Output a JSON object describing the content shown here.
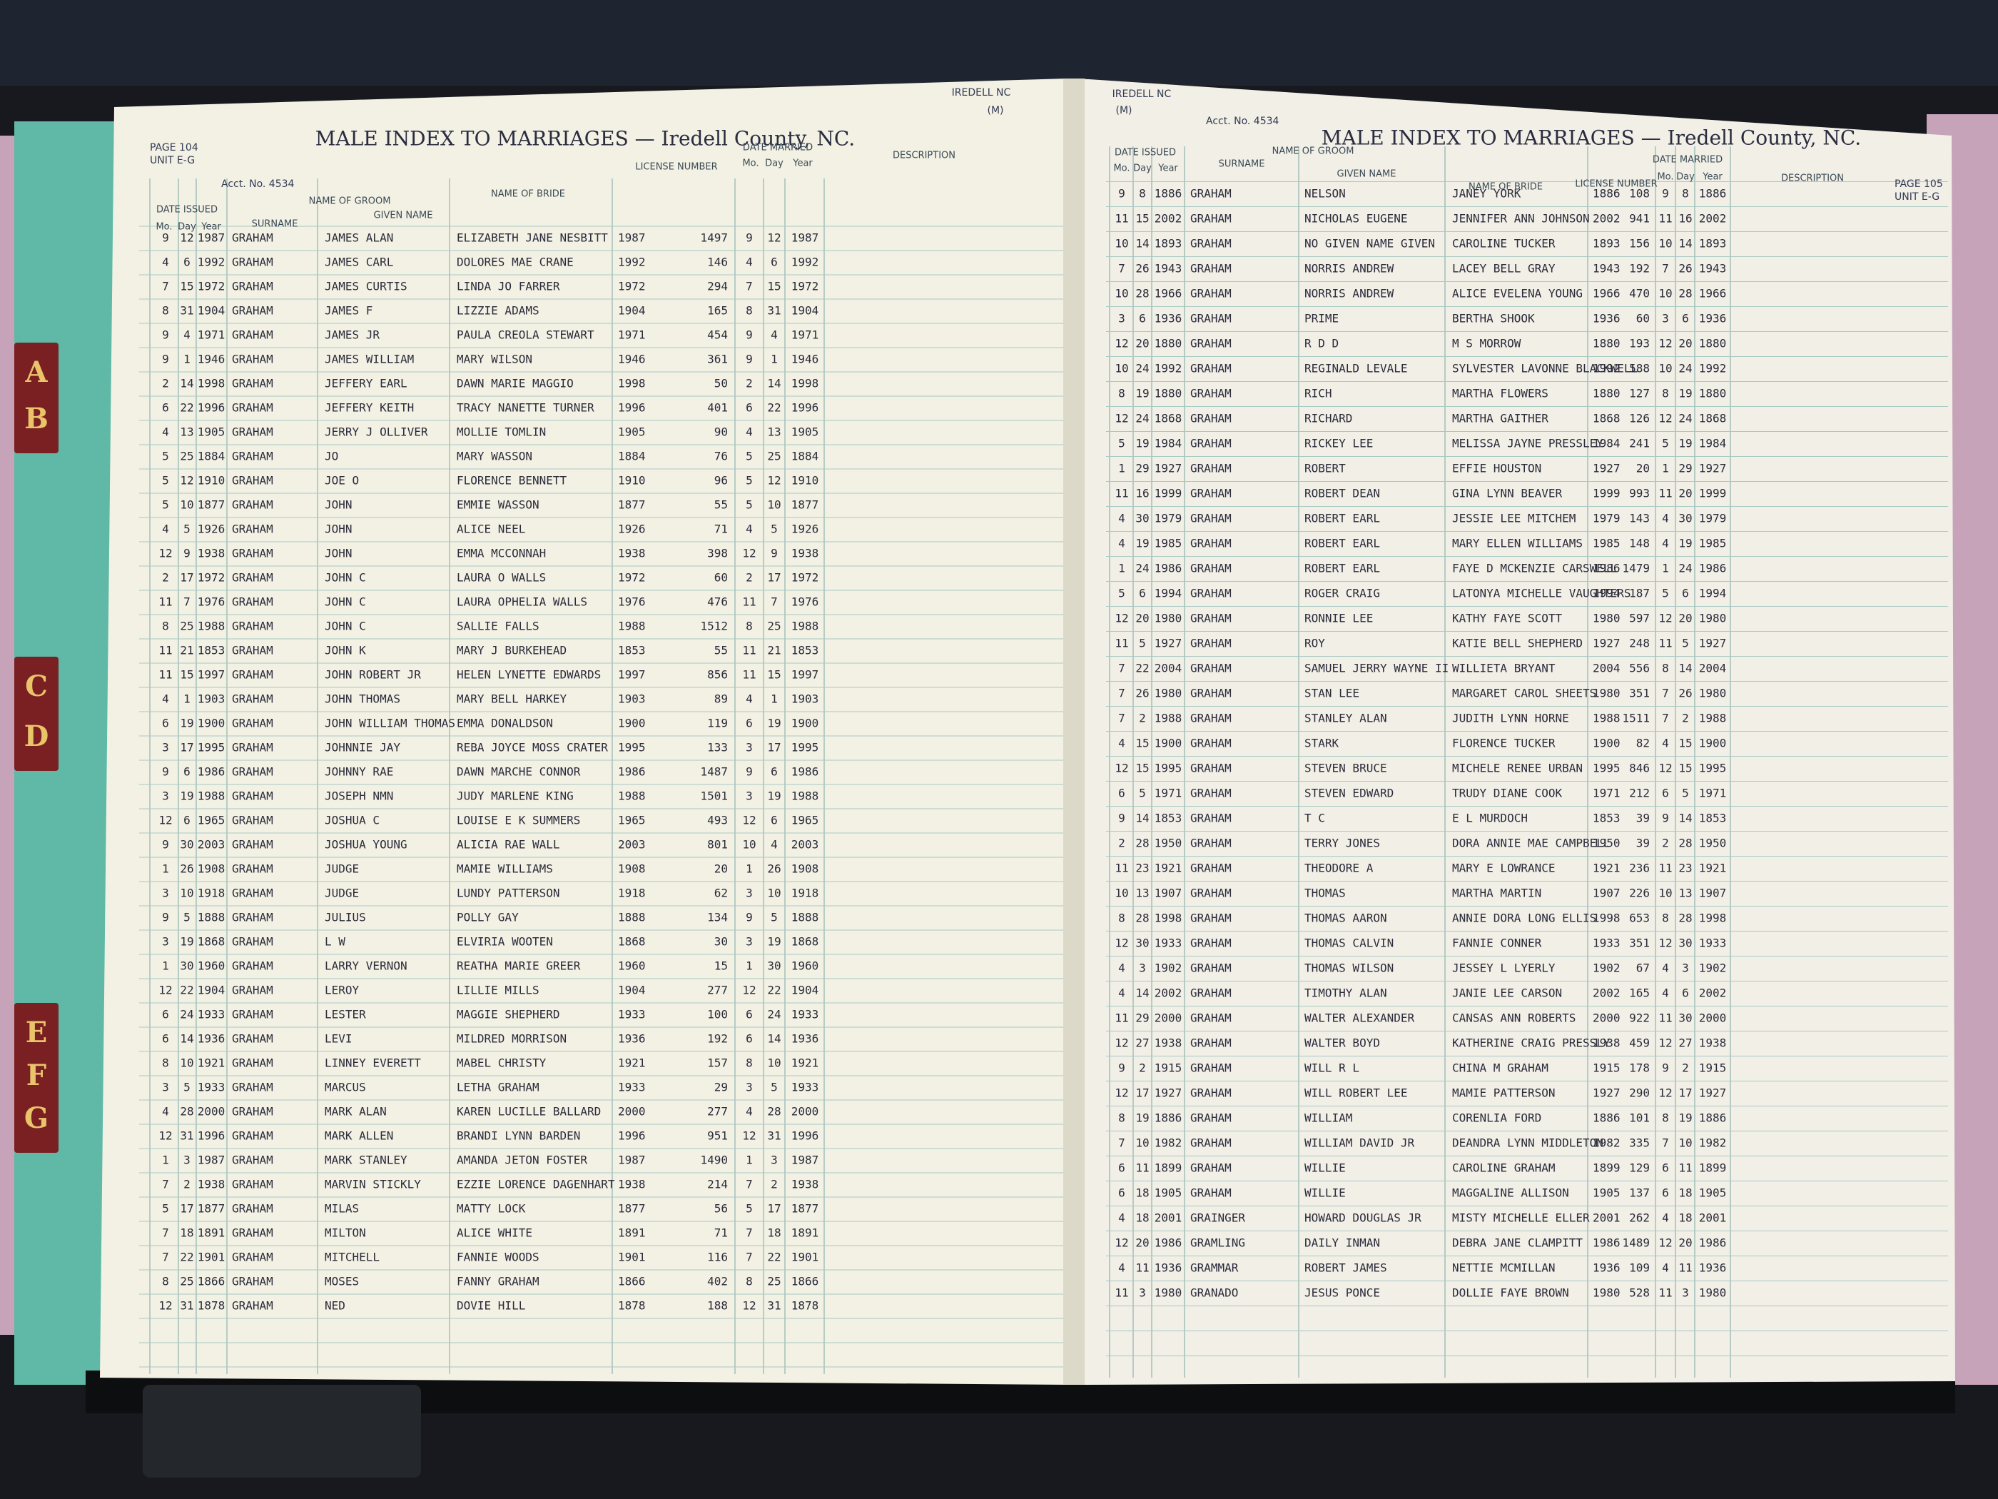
{
  "headers": {
    "date_issued": "DATE ISSUED",
    "mo": "Mo.",
    "day": "Day",
    "year": "Year",
    "groom": "NAME OF GROOM",
    "surname": "SURNAME",
    "given": "GIVEN NAME",
    "bride": "NAME OF BRIDE",
    "license": "LICENSE NUMBER",
    "date_married": "DATE MARRIED",
    "description": "DESCRIPTION"
  },
  "left_page": {
    "page": "PAGE 104",
    "unit": "UNIT E-G",
    "acct": "Acct. No. 4534",
    "title": "MALE INDEX TO MARRIAGES — Iredell County, NC.",
    "county": "IREDELL NC",
    "code": "(M)",
    "rows": [
      [
        9,
        12,
        1987,
        "GRAHAM",
        "JAMES ALAN",
        "ELIZABETH JANE NESBITT",
        1987,
        1497,
        9,
        12,
        1987
      ],
      [
        4,
        6,
        1992,
        "GRAHAM",
        "JAMES CARL",
        "DOLORES MAE CRANE",
        1992,
        146,
        4,
        6,
        1992
      ],
      [
        7,
        15,
        1972,
        "GRAHAM",
        "JAMES CURTIS",
        "LINDA JO FARRER",
        1972,
        294,
        7,
        15,
        1972
      ],
      [
        8,
        31,
        1904,
        "GRAHAM",
        "JAMES F",
        "LIZZIE ADAMS",
        1904,
        165,
        8,
        31,
        1904
      ],
      [
        9,
        4,
        1971,
        "GRAHAM",
        "JAMES JR",
        "PAULA CREOLA STEWART",
        1971,
        454,
        9,
        4,
        1971
      ],
      [
        9,
        1,
        1946,
        "GRAHAM",
        "JAMES WILLIAM",
        "MARY WILSON",
        1946,
        361,
        9,
        1,
        1946
      ],
      [
        2,
        14,
        1998,
        "GRAHAM",
        "JEFFERY EARL",
        "DAWN MARIE MAGGIO",
        1998,
        50,
        2,
        14,
        1998
      ],
      [
        6,
        22,
        1996,
        "GRAHAM",
        "JEFFERY KEITH",
        "TRACY NANETTE TURNER",
        1996,
        401,
        6,
        22,
        1996
      ],
      [
        4,
        13,
        1905,
        "GRAHAM",
        "JERRY J OLLIVER",
        "MOLLIE TOMLIN",
        1905,
        90,
        4,
        13,
        1905
      ],
      [
        5,
        25,
        1884,
        "GRAHAM",
        "JO",
        "MARY WASSON",
        1884,
        76,
        5,
        25,
        1884
      ],
      [
        5,
        12,
        1910,
        "GRAHAM",
        "JOE O",
        "FLORENCE BENNETT",
        1910,
        96,
        5,
        12,
        1910
      ],
      [
        5,
        10,
        1877,
        "GRAHAM",
        "JOHN",
        "EMMIE WASSON",
        1877,
        55,
        5,
        10,
        1877
      ],
      [
        4,
        5,
        1926,
        "GRAHAM",
        "JOHN",
        "ALICE NEEL",
        1926,
        71,
        4,
        5,
        1926
      ],
      [
        12,
        9,
        1938,
        "GRAHAM",
        "JOHN",
        "EMMA MCCONNAH",
        1938,
        398,
        12,
        9,
        1938
      ],
      [
        2,
        17,
        1972,
        "GRAHAM",
        "JOHN C",
        "LAURA O WALLS",
        1972,
        60,
        2,
        17,
        1972
      ],
      [
        11,
        7,
        1976,
        "GRAHAM",
        "JOHN C",
        "LAURA OPHELIA WALLS",
        1976,
        476,
        11,
        7,
        1976
      ],
      [
        8,
        25,
        1988,
        "GRAHAM",
        "JOHN C",
        "SALLIE FALLS",
        1988,
        1512,
        8,
        25,
        1988
      ],
      [
        11,
        21,
        1853,
        "GRAHAM",
        "JOHN K",
        "MARY J BURKEHEAD",
        1853,
        55,
        11,
        21,
        1853
      ],
      [
        11,
        15,
        1997,
        "GRAHAM",
        "JOHN ROBERT JR",
        "HELEN LYNETTE EDWARDS",
        1997,
        856,
        11,
        15,
        1997
      ],
      [
        4,
        1,
        1903,
        "GRAHAM",
        "JOHN THOMAS",
        "MARY BELL HARKEY",
        1903,
        89,
        4,
        1,
        1903
      ],
      [
        6,
        19,
        1900,
        "GRAHAM",
        "JOHN WILLIAM THOMAS",
        "EMMA DONALDSON",
        1900,
        119,
        6,
        19,
        1900
      ],
      [
        3,
        17,
        1995,
        "GRAHAM",
        "JOHNNIE JAY",
        "REBA JOYCE MOSS CRATER",
        1995,
        133,
        3,
        17,
        1995
      ],
      [
        9,
        6,
        1986,
        "GRAHAM",
        "JOHNNY RAE",
        "DAWN MARCHE CONNOR",
        1986,
        1487,
        9,
        6,
        1986
      ],
      [
        3,
        19,
        1988,
        "GRAHAM",
        "JOSEPH NMN",
        "JUDY MARLENE KING",
        1988,
        1501,
        3,
        19,
        1988
      ],
      [
        12,
        6,
        1965,
        "GRAHAM",
        "JOSHUA C",
        "LOUISE E K SUMMERS",
        1965,
        493,
        12,
        6,
        1965
      ],
      [
        9,
        30,
        2003,
        "GRAHAM",
        "JOSHUA YOUNG",
        "ALICIA RAE WALL",
        2003,
        801,
        10,
        4,
        2003
      ],
      [
        1,
        26,
        1908,
        "GRAHAM",
        "JUDGE",
        "MAMIE WILLIAMS",
        1908,
        20,
        1,
        26,
        1908
      ],
      [
        3,
        10,
        1918,
        "GRAHAM",
        "JUDGE",
        "LUNDY PATTERSON",
        1918,
        62,
        3,
        10,
        1918
      ],
      [
        9,
        5,
        1888,
        "GRAHAM",
        "JULIUS",
        "POLLY GAY",
        1888,
        134,
        9,
        5,
        1888
      ],
      [
        3,
        19,
        1868,
        "GRAHAM",
        "L W",
        "ELVIRIA WOOTEN",
        1868,
        30,
        3,
        19,
        1868
      ],
      [
        1,
        30,
        1960,
        "GRAHAM",
        "LARRY VERNON",
        "REATHA MARIE GREER",
        1960,
        15,
        1,
        30,
        1960
      ],
      [
        12,
        22,
        1904,
        "GRAHAM",
        "LEROY",
        "LILLIE MILLS",
        1904,
        277,
        12,
        22,
        1904
      ],
      [
        6,
        24,
        1933,
        "GRAHAM",
        "LESTER",
        "MAGGIE SHEPHERD",
        1933,
        100,
        6,
        24,
        1933
      ],
      [
        6,
        14,
        1936,
        "GRAHAM",
        "LEVI",
        "MILDRED MORRISON",
        1936,
        192,
        6,
        14,
        1936
      ],
      [
        8,
        10,
        1921,
        "GRAHAM",
        "LINNEY EVERETT",
        "MABEL CHRISTY",
        1921,
        157,
        8,
        10,
        1921
      ],
      [
        3,
        5,
        1933,
        "GRAHAM",
        "MARCUS",
        "LETHA GRAHAM",
        1933,
        29,
        3,
        5,
        1933
      ],
      [
        4,
        28,
        2000,
        "GRAHAM",
        "MARK ALAN",
        "KAREN LUCILLE BALLARD",
        2000,
        277,
        4,
        28,
        2000
      ],
      [
        12,
        31,
        1996,
        "GRAHAM",
        "MARK ALLEN",
        "BRANDI LYNN BARDEN",
        1996,
        951,
        12,
        31,
        1996
      ],
      [
        1,
        3,
        1987,
        "GRAHAM",
        "MARK STANLEY",
        "AMANDA JETON FOSTER",
        1987,
        1490,
        1,
        3,
        1987
      ],
      [
        7,
        2,
        1938,
        "GRAHAM",
        "MARVIN STICKLY",
        "EZZIE LORENCE DAGENHART",
        1938,
        214,
        7,
        2,
        1938
      ],
      [
        5,
        17,
        1877,
        "GRAHAM",
        "MILAS",
        "MATTY LOCK",
        1877,
        56,
        5,
        17,
        1877
      ],
      [
        7,
        18,
        1891,
        "GRAHAM",
        "MILTON",
        "ALICE WHITE",
        1891,
        71,
        7,
        18,
        1891
      ],
      [
        7,
        22,
        1901,
        "GRAHAM",
        "MITCHELL",
        "FANNIE WOODS",
        1901,
        116,
        7,
        22,
        1901
      ],
      [
        8,
        25,
        1866,
        "GRAHAM",
        "MOSES",
        "FANNY GRAHAM",
        1866,
        402,
        8,
        25,
        1866
      ],
      [
        12,
        31,
        1878,
        "GRAHAM",
        "NED",
        "DOVIE HILL",
        1878,
        188,
        12,
        31,
        1878
      ]
    ]
  },
  "right_page": {
    "page": "PAGE 105",
    "unit": "UNIT E-G",
    "acct": "Acct. No. 4534",
    "title": "MALE INDEX TO MARRIAGES — Iredell County, NC.",
    "county": "IREDELL NC",
    "code": "(M)",
    "rows": [
      [
        9,
        8,
        1886,
        "GRAHAM",
        "NELSON",
        "JANEY YORK",
        1886,
        108,
        9,
        8,
        1886
      ],
      [
        11,
        15,
        2002,
        "GRAHAM",
        "NICHOLAS EUGENE",
        "JENNIFER ANN JOHNSON",
        2002,
        941,
        11,
        16,
        2002
      ],
      [
        10,
        14,
        1893,
        "GRAHAM",
        "NO GIVEN NAME GIVEN",
        "CAROLINE TUCKER",
        1893,
        156,
        10,
        14,
        1893
      ],
      [
        7,
        26,
        1943,
        "GRAHAM",
        "NORRIS ANDREW",
        "LACEY BELL GRAY",
        1943,
        192,
        7,
        26,
        1943
      ],
      [
        10,
        28,
        1966,
        "GRAHAM",
        "NORRIS ANDREW",
        "ALICE EVELENA YOUNG",
        1966,
        470,
        10,
        28,
        1966
      ],
      [
        3,
        6,
        1936,
        "GRAHAM",
        "PRIME",
        "BERTHA SHOOK",
        1936,
        60,
        3,
        6,
        1936
      ],
      [
        12,
        20,
        1880,
        "GRAHAM",
        "R D D",
        "M S MORROW",
        1880,
        193,
        12,
        20,
        1880
      ],
      [
        10,
        24,
        1992,
        "GRAHAM",
        "REGINALD LEVALE",
        "SYLVESTER LAVONNE BLACKWELL",
        1992,
        588,
        10,
        24,
        1992
      ],
      [
        8,
        19,
        1880,
        "GRAHAM",
        "RICH",
        "MARTHA FLOWERS",
        1880,
        127,
        8,
        19,
        1880
      ],
      [
        12,
        24,
        1868,
        "GRAHAM",
        "RICHARD",
        "MARTHA GAITHER",
        1868,
        126,
        12,
        24,
        1868
      ],
      [
        5,
        19,
        1984,
        "GRAHAM",
        "RICKEY LEE",
        "MELISSA JAYNE PRESSLEY",
        1984,
        241,
        5,
        19,
        1984
      ],
      [
        1,
        29,
        1927,
        "GRAHAM",
        "ROBERT",
        "EFFIE HOUSTON",
        1927,
        20,
        1,
        29,
        1927
      ],
      [
        11,
        16,
        1999,
        "GRAHAM",
        "ROBERT DEAN",
        "GINA LYNN BEAVER",
        1999,
        993,
        11,
        20,
        1999
      ],
      [
        4,
        30,
        1979,
        "GRAHAM",
        "ROBERT EARL",
        "JESSIE LEE MITCHEM",
        1979,
        143,
        4,
        30,
        1979
      ],
      [
        4,
        19,
        1985,
        "GRAHAM",
        "ROBERT EARL",
        "MARY ELLEN WILLIAMS",
        1985,
        148,
        4,
        19,
        1985
      ],
      [
        1,
        24,
        1986,
        "GRAHAM",
        "ROBERT EARL",
        "FAYE D MCKENZIE CARSWELL",
        1986,
        1479,
        1,
        24,
        1986
      ],
      [
        5,
        6,
        1994,
        "GRAHAM",
        "ROGER CRAIG",
        "LATONYA MICHELLE VAUGHTERS",
        1994,
        187,
        5,
        6,
        1994
      ],
      [
        12,
        20,
        1980,
        "GRAHAM",
        "RONNIE LEE",
        "KATHY FAYE SCOTT",
        1980,
        597,
        12,
        20,
        1980
      ],
      [
        11,
        5,
        1927,
        "GRAHAM",
        "ROY",
        "KATIE BELL SHEPHERD",
        1927,
        248,
        11,
        5,
        1927
      ],
      [
        7,
        22,
        2004,
        "GRAHAM",
        "SAMUEL JERRY WAYNE II",
        "WILLIETA BRYANT",
        2004,
        556,
        8,
        14,
        2004
      ],
      [
        7,
        26,
        1980,
        "GRAHAM",
        "STAN LEE",
        "MARGARET CAROL SHEETS",
        1980,
        351,
        7,
        26,
        1980
      ],
      [
        7,
        2,
        1988,
        "GRAHAM",
        "STANLEY ALAN",
        "JUDITH LYNN HORNE",
        1988,
        1511,
        7,
        2,
        1988
      ],
      [
        4,
        15,
        1900,
        "GRAHAM",
        "STARK",
        "FLORENCE TUCKER",
        1900,
        82,
        4,
        15,
        1900
      ],
      [
        12,
        15,
        1995,
        "GRAHAM",
        "STEVEN BRUCE",
        "MICHELE RENEE URBAN",
        1995,
        846,
        12,
        15,
        1995
      ],
      [
        6,
        5,
        1971,
        "GRAHAM",
        "STEVEN EDWARD",
        "TRUDY DIANE COOK",
        1971,
        212,
        6,
        5,
        1971
      ],
      [
        9,
        14,
        1853,
        "GRAHAM",
        "T C",
        "E L MURDOCH",
        1853,
        39,
        9,
        14,
        1853
      ],
      [
        2,
        28,
        1950,
        "GRAHAM",
        "TERRY JONES",
        "DORA ANNIE MAE CAMPBELL",
        1950,
        39,
        2,
        28,
        1950
      ],
      [
        11,
        23,
        1921,
        "GRAHAM",
        "THEODORE A",
        "MARY E LOWRANCE",
        1921,
        236,
        11,
        23,
        1921
      ],
      [
        10,
        13,
        1907,
        "GRAHAM",
        "THOMAS",
        "MARTHA MARTIN",
        1907,
        226,
        10,
        13,
        1907
      ],
      [
        8,
        28,
        1998,
        "GRAHAM",
        "THOMAS AARON",
        "ANNIE DORA LONG ELLIS",
        1998,
        653,
        8,
        28,
        1998
      ],
      [
        12,
        30,
        1933,
        "GRAHAM",
        "THOMAS CALVIN",
        "FANNIE CONNER",
        1933,
        351,
        12,
        30,
        1933
      ],
      [
        4,
        3,
        1902,
        "GRAHAM",
        "THOMAS WILSON",
        "JESSEY L LYERLY",
        1902,
        67,
        4,
        3,
        1902
      ],
      [
        4,
        14,
        2002,
        "GRAHAM",
        "TIMOTHY ALAN",
        "JANIE LEE CARSON",
        2002,
        165,
        4,
        6,
        2002
      ],
      [
        11,
        29,
        2000,
        "GRAHAM",
        "WALTER ALEXANDER",
        "CANSAS ANN ROBERTS",
        2000,
        922,
        11,
        30,
        2000
      ],
      [
        12,
        27,
        1938,
        "GRAHAM",
        "WALTER BOYD",
        "KATHERINE CRAIG PRESSLY",
        1938,
        459,
        12,
        27,
        1938
      ],
      [
        9,
        2,
        1915,
        "GRAHAM",
        "WILL R L",
        "CHINA M GRAHAM",
        1915,
        178,
        9,
        2,
        1915
      ],
      [
        12,
        17,
        1927,
        "GRAHAM",
        "WILL ROBERT LEE",
        "MAMIE PATTERSON",
        1927,
        290,
        12,
        17,
        1927
      ],
      [
        8,
        19,
        1886,
        "GRAHAM",
        "WILLIAM",
        "CORENLIA FORD",
        1886,
        101,
        8,
        19,
        1886
      ],
      [
        7,
        10,
        1982,
        "GRAHAM",
        "WILLIAM DAVID JR",
        "DEANDRA LYNN MIDDLETON",
        1982,
        335,
        7,
        10,
        1982
      ],
      [
        6,
        11,
        1899,
        "GRAHAM",
        "WILLIE",
        "CAROLINE GRAHAM",
        1899,
        129,
        6,
        11,
        1899
      ],
      [
        6,
        18,
        1905,
        "GRAHAM",
        "WILLIE",
        "MAGGALINE ALLISON",
        1905,
        137,
        6,
        18,
        1905
      ],
      [
        4,
        18,
        2001,
        "GRAINGER",
        "HOWARD DOUGLAS JR",
        "MISTY MICHELLE ELLER",
        2001,
        262,
        4,
        18,
        2001
      ],
      [
        12,
        20,
        1986,
        "GRAMLING",
        "DAILY INMAN",
        "DEBRA JANE CLAMPITT",
        1986,
        1489,
        12,
        20,
        1986
      ],
      [
        4,
        11,
        1936,
        "GRAMMAR",
        "ROBERT JAMES",
        "NETTIE MCMILLAN",
        1936,
        109,
        4,
        11,
        1936
      ],
      [
        11,
        3,
        1980,
        "GRANADO",
        "JESUS PONCE",
        "DOLLIE FAYE BROWN",
        1980,
        528,
        11,
        3,
        1980
      ]
    ]
  },
  "tabs": [
    [
      "A",
      "B"
    ],
    [
      "C",
      "D"
    ],
    [
      "E",
      "F",
      "G"
    ]
  ]
}
